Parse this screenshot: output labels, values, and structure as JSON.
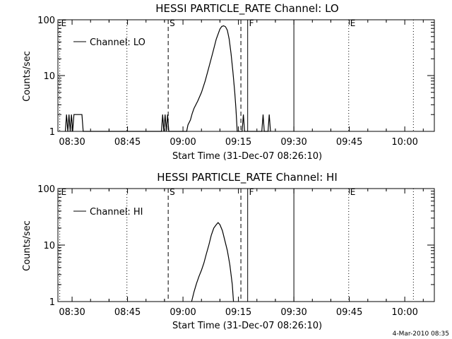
{
  "footer_date": "4-Mar-2010 08:35",
  "chart_data": [
    {
      "type": "line",
      "title": "HESSI PARTICLE_RATE Channel: LO",
      "xlabel": "Start Time (31-Dec-07 08:26:10)",
      "ylabel": "Counts/sec",
      "yscale": "log",
      "ylim": [
        1,
        100
      ],
      "xlim": [
        "08:26:10",
        "10:08:00"
      ],
      "x_ticks": [
        "08:30",
        "08:45",
        "09:00",
        "09:15",
        "09:30",
        "09:45",
        "10:00"
      ],
      "y_ticks": [
        "1",
        "10",
        "100"
      ],
      "legend": "Channel: LO",
      "legend_position": "upper-left",
      "series": [
        {
          "name": "Channel: LO",
          "points": [
            [
              "08:28:10",
              1
            ],
            [
              "08:28:30",
              2
            ],
            [
              "08:28:50",
              1
            ],
            [
              "08:29:10",
              2
            ],
            [
              "08:29:30",
              1
            ],
            [
              "08:29:50",
              2
            ],
            [
              "08:30:10",
              1
            ],
            [
              "08:30:30",
              2
            ],
            [
              "08:31:00",
              2
            ],
            [
              "08:32:00",
              2
            ],
            [
              "08:32:40",
              2
            ],
            [
              "08:33:00",
              1
            ],
            [
              "08:54:10",
              1
            ],
            [
              "08:54:30",
              2
            ],
            [
              "08:54:50",
              1
            ],
            [
              "08:55:10",
              2
            ],
            [
              "08:55:30",
              1
            ],
            [
              "08:55:50",
              2
            ],
            [
              "08:56:10",
              1
            ],
            [
              "09:01:00",
              1
            ],
            [
              "09:01:20",
              1.3
            ],
            [
              "09:02:00",
              1.6
            ],
            [
              "09:02:30",
              2.1
            ],
            [
              "09:03:00",
              2.6
            ],
            [
              "09:04:00",
              3.5
            ],
            [
              "09:05:00",
              5
            ],
            [
              "09:06:00",
              8
            ],
            [
              "09:07:00",
              14
            ],
            [
              "09:08:00",
              25
            ],
            [
              "09:09:00",
              45
            ],
            [
              "09:10:00",
              68
            ],
            [
              "09:10:30",
              76
            ],
            [
              "09:11:00",
              78
            ],
            [
              "09:11:30",
              75
            ],
            [
              "09:12:00",
              65
            ],
            [
              "09:12:30",
              45
            ],
            [
              "09:13:00",
              25
            ],
            [
              "09:13:30",
              12
            ],
            [
              "09:14:00",
              5
            ],
            [
              "09:14:20",
              2.5
            ],
            [
              "09:14:40",
              1
            ],
            [
              "09:16:00",
              1
            ],
            [
              "09:16:20",
              2
            ],
            [
              "09:16:40",
              1
            ],
            [
              "09:21:20",
              1
            ],
            [
              "09:21:40",
              2
            ],
            [
              "09:22:00",
              1
            ],
            [
              "09:23:00",
              1
            ],
            [
              "09:23:20",
              2
            ],
            [
              "09:23:40",
              1
            ]
          ]
        }
      ],
      "markers": [
        {
          "time": "08:26:40",
          "style": "dotted",
          "label": "E"
        },
        {
          "time": "08:44:50",
          "style": "dotted",
          "label": ""
        },
        {
          "time": "08:56:00",
          "style": "dashed",
          "label": "S"
        },
        {
          "time": "09:15:40",
          "style": "dashed",
          "label": ""
        },
        {
          "time": "09:17:30",
          "style": "solid",
          "label": "F"
        },
        {
          "time": "09:30:00",
          "style": "solid",
          "label": ""
        },
        {
          "time": "09:44:50",
          "style": "dotted",
          "label": "E"
        },
        {
          "time": "10:02:20",
          "style": "dotted",
          "label": ""
        }
      ]
    },
    {
      "type": "line",
      "title": "HESSI PARTICLE_RATE Channel: HI",
      "xlabel": "Start Time (31-Dec-07 08:26:10)",
      "ylabel": "Counts/sec",
      "yscale": "log",
      "ylim": [
        1,
        100
      ],
      "xlim": [
        "08:26:10",
        "10:08:00"
      ],
      "x_ticks": [
        "08:30",
        "08:45",
        "09:00",
        "09:15",
        "09:30",
        "09:45",
        "10:00"
      ],
      "y_ticks": [
        "1",
        "10",
        "100"
      ],
      "legend": "Channel: HI",
      "legend_position": "upper-left",
      "series": [
        {
          "name": "Channel: HI",
          "points": [
            [
              "09:02:20",
              1
            ],
            [
              "09:03:00",
              1.5
            ],
            [
              "09:03:40",
              2.1
            ],
            [
              "09:04:20",
              2.8
            ],
            [
              "09:05:00",
              3.6
            ],
            [
              "09:05:40",
              4.8
            ],
            [
              "09:06:20",
              7
            ],
            [
              "09:07:00",
              10
            ],
            [
              "09:07:40",
              15
            ],
            [
              "09:08:20",
              20
            ],
            [
              "09:09:00",
              23
            ],
            [
              "09:09:30",
              25
            ],
            [
              "09:10:00",
              23
            ],
            [
              "09:10:40",
              18
            ],
            [
              "09:11:20",
              12
            ],
            [
              "09:12:00",
              8
            ],
            [
              "09:12:40",
              4.5
            ],
            [
              "09:13:20",
              2
            ],
            [
              "09:13:40",
              1
            ]
          ]
        }
      ],
      "markers": [
        {
          "time": "08:26:40",
          "style": "dotted",
          "label": "E"
        },
        {
          "time": "08:44:50",
          "style": "dotted",
          "label": ""
        },
        {
          "time": "08:56:00",
          "style": "dashed",
          "label": "S"
        },
        {
          "time": "09:15:40",
          "style": "dashed",
          "label": ""
        },
        {
          "time": "09:17:30",
          "style": "solid",
          "label": "F"
        },
        {
          "time": "09:30:00",
          "style": "solid",
          "label": ""
        },
        {
          "time": "09:44:50",
          "style": "dotted",
          "label": "E"
        },
        {
          "time": "10:02:20",
          "style": "dotted",
          "label": ""
        }
      ]
    }
  ]
}
